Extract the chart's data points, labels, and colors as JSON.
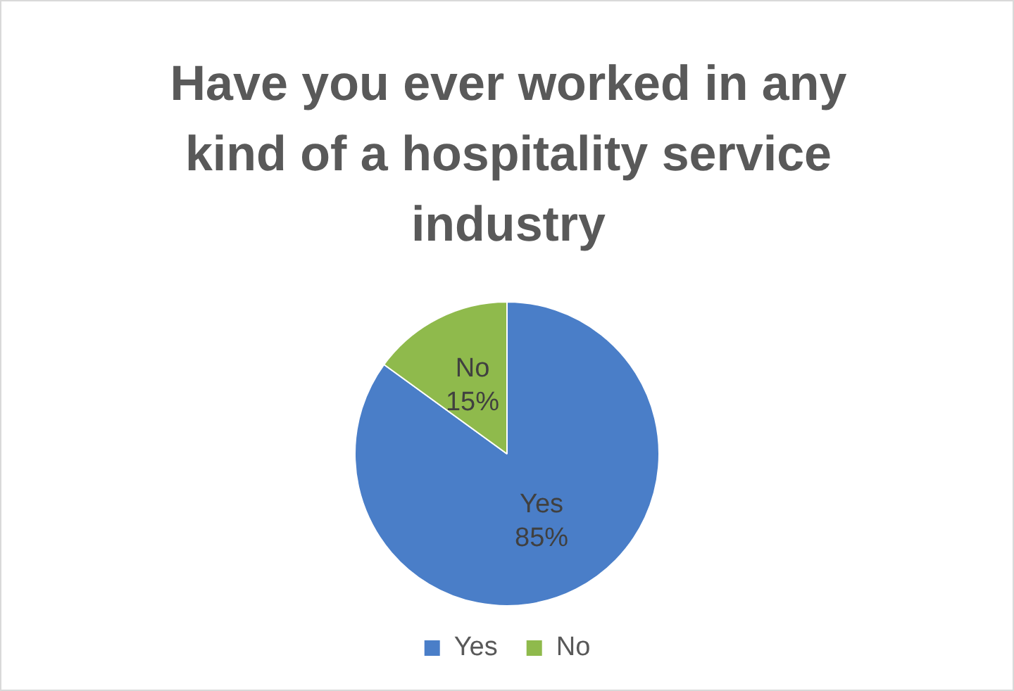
{
  "chart_data": {
    "type": "pie",
    "title": "Have you ever worked in any kind of a hospitality service industry",
    "categories": [
      "Yes",
      "No"
    ],
    "values": [
      85,
      15
    ],
    "colors": [
      "#4a7ec8",
      "#8fba4c"
    ],
    "value_labels": [
      "85%",
      "15%"
    ],
    "legend": "bottom"
  }
}
